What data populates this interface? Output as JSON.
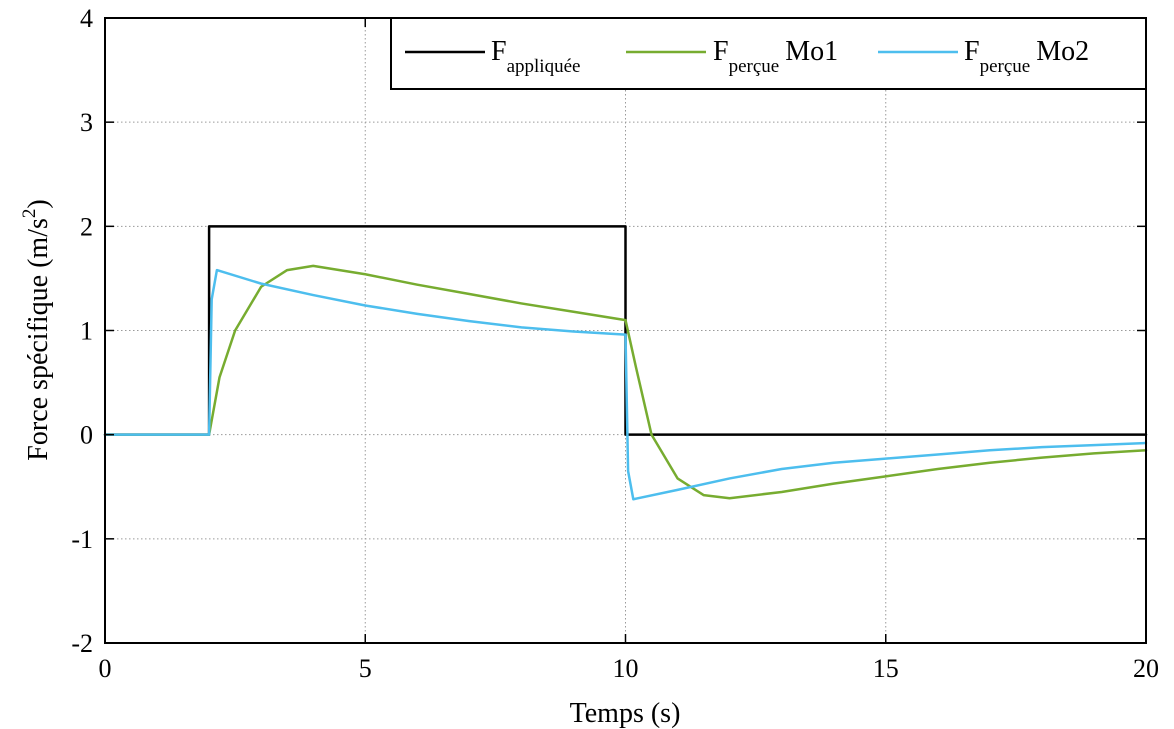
{
  "chart_data": {
    "type": "line",
    "xlabel": "Temps (s)",
    "ylabel": "Force spécifique (m/s²)",
    "ylabel_parts": {
      "main": "Force spécifique (m/s",
      "sup": "2",
      "end": ")"
    },
    "xlim": [
      0,
      20
    ],
    "ylim": [
      -2,
      4
    ],
    "x_ticks": [
      0,
      5,
      10,
      15,
      20
    ],
    "y_ticks": [
      -2,
      -1,
      0,
      1,
      2,
      3,
      4
    ],
    "grid": true,
    "legend_position": "top-right",
    "series": [
      {
        "name": "F appliquée",
        "legend_main": "F",
        "legend_sub": "appliquée",
        "legend_suffix": "",
        "color": "#000000",
        "x": [
          0,
          2,
          2,
          10,
          10,
          20
        ],
        "y": [
          0,
          0,
          2,
          2,
          0,
          0
        ]
      },
      {
        "name": "F perçue Mo1",
        "legend_main": "F",
        "legend_sub": "perçue",
        "legend_suffix": "Mo1",
        "color": "#77AC30",
        "x": [
          0,
          2,
          2.2,
          2.5,
          3,
          3.5,
          4,
          5,
          6,
          7,
          8,
          9,
          10,
          10.2,
          10.5,
          11,
          11.5,
          12,
          13,
          14,
          15,
          16,
          17,
          18,
          19,
          20
        ],
        "y": [
          0,
          0,
          0.55,
          1.0,
          1.42,
          1.58,
          1.62,
          1.54,
          1.44,
          1.35,
          1.26,
          1.18,
          1.1,
          0.65,
          0.0,
          -0.42,
          -0.58,
          -0.61,
          -0.55,
          -0.47,
          -0.4,
          -0.33,
          -0.27,
          -0.22,
          -0.18,
          -0.15
        ]
      },
      {
        "name": "F perçue Mo2",
        "legend_main": "F",
        "legend_sub": "perçue",
        "legend_suffix": "Mo2",
        "color": "#4DBEEE",
        "x": [
          0,
          2,
          2.05,
          2.15,
          3,
          4,
          5,
          6,
          7,
          8,
          9,
          10,
          10.05,
          10.15,
          11,
          12,
          13,
          14,
          15,
          16,
          17,
          18,
          19,
          20
        ],
        "y": [
          0,
          0,
          1.3,
          1.58,
          1.45,
          1.34,
          1.24,
          1.16,
          1.09,
          1.03,
          0.99,
          0.96,
          -0.35,
          -0.62,
          -0.53,
          -0.42,
          -0.33,
          -0.27,
          -0.23,
          -0.19,
          -0.15,
          -0.12,
          -0.1,
          -0.08
        ]
      }
    ]
  }
}
